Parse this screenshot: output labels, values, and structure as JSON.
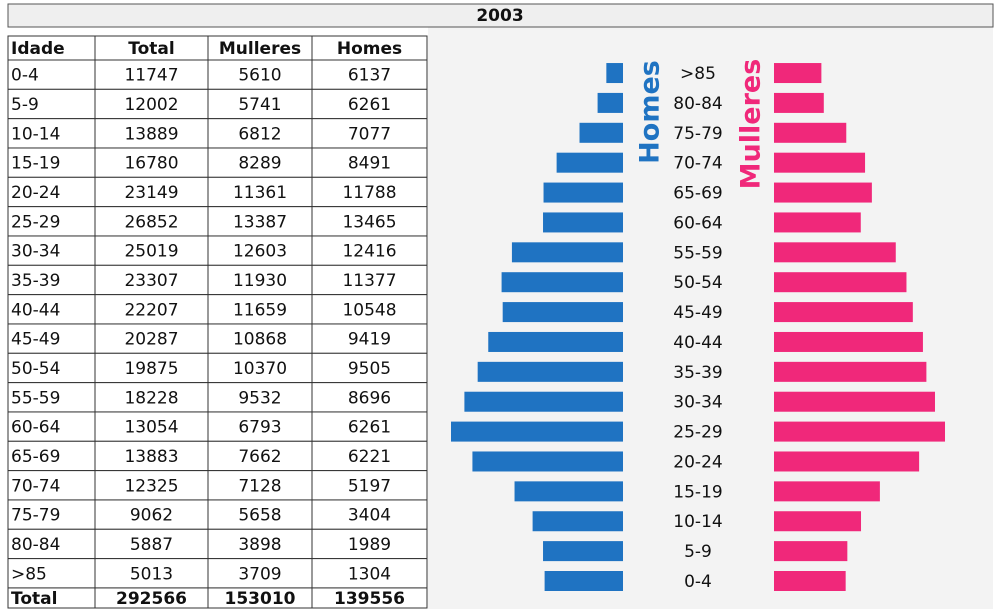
{
  "title": "2003",
  "table": {
    "header": [
      "Idade",
      "Total",
      "Mulleres",
      "Homes"
    ],
    "rows": [
      [
        "0-4",
        11747,
        5610,
        6137
      ],
      [
        "5-9",
        12002,
        5741,
        6261
      ],
      [
        "10-14",
        13889,
        6812,
        7077
      ],
      [
        "15-19",
        16780,
        8289,
        8491
      ],
      [
        "20-24",
        23149,
        11361,
        11788
      ],
      [
        "25-29",
        26852,
        13387,
        13465
      ],
      [
        "30-34",
        25019,
        12603,
        12416
      ],
      [
        "35-39",
        23307,
        11930,
        11377
      ],
      [
        "40-44",
        22207,
        11659,
        10548
      ],
      [
        "45-49",
        20287,
        10868,
        9419
      ],
      [
        "50-54",
        19875,
        10370,
        9505
      ],
      [
        "55-59",
        18228,
        9532,
        8696
      ],
      [
        "60-64",
        13054,
        6793,
        6261
      ],
      [
        "65-69",
        13883,
        7662,
        6221
      ],
      [
        "70-74",
        12325,
        7128,
        5197
      ],
      [
        "75-79",
        9062,
        5658,
        3404
      ],
      [
        "80-84",
        5887,
        3898,
        1989
      ],
      [
        ">85",
        5013,
        3709,
        1304
      ]
    ],
    "total": [
      "Total",
      292566,
      153010,
      139556
    ]
  }
}
